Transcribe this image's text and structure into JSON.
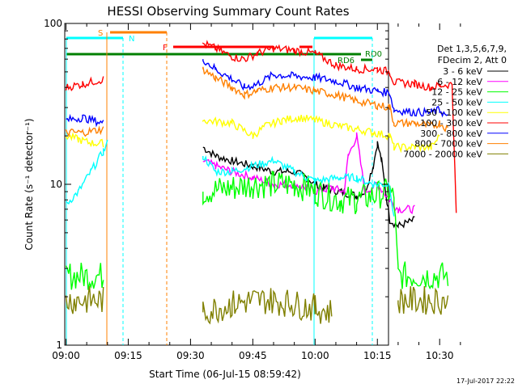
{
  "chart_data": {
    "type": "line",
    "title": "HESSI Observing Summary Count Rates",
    "xlabel": "Start Time (06-Jul-15 08:59:42)",
    "ylabel": "Count Rate (s⁻¹ detector⁻¹)",
    "yscale": "log",
    "ylim": [
      1,
      100
    ],
    "y_ticks": [
      {
        "value": 1,
        "label": "1"
      },
      {
        "value": 10,
        "label": "10"
      },
      {
        "value": 100,
        "label": "100"
      }
    ],
    "x_ticks": [
      {
        "min": 0,
        "label": "09:00"
      },
      {
        "min": 15,
        "label": "09:15"
      },
      {
        "min": 30,
        "label": "09:30"
      },
      {
        "min": 45,
        "label": "09:45"
      },
      {
        "min": 60,
        "label": "10:00"
      },
      {
        "min": 75,
        "label": "10:15"
      },
      {
        "min": 90,
        "label": "10:30"
      }
    ],
    "x_unit": "minutes after 09:00",
    "xlim": [
      0,
      100
    ],
    "legend_header": [
      "Det 1,3,5,6,7,9,",
      "FDecim 2, Att 0"
    ],
    "legend_placement": "right",
    "series": [
      {
        "name": "3 - 6 keV",
        "color": "#000000",
        "points": [
          [
            33,
            17
          ],
          [
            36,
            15
          ],
          [
            40,
            14
          ],
          [
            45,
            13
          ],
          [
            50,
            12
          ],
          [
            55,
            12
          ],
          [
            58,
            11
          ],
          [
            60,
            10
          ],
          [
            62,
            9.5
          ],
          [
            66,
            9
          ],
          [
            70,
            8.5
          ],
          [
            72,
            9
          ],
          [
            74,
            13
          ],
          [
            75,
            18
          ],
          [
            76,
            14
          ],
          [
            77,
            9
          ],
          [
            78,
            6
          ],
          [
            80,
            5.5
          ],
          [
            84,
            6
          ]
        ]
      },
      {
        "name": "6 - 12 keV",
        "color": "#ff00ff",
        "points": [
          [
            33,
            14
          ],
          [
            36,
            13
          ],
          [
            40,
            12
          ],
          [
            45,
            11
          ],
          [
            50,
            10
          ],
          [
            55,
            10
          ],
          [
            58,
            9.5
          ],
          [
            60,
            9
          ],
          [
            64,
            9.5
          ],
          [
            67,
            9
          ],
          [
            68,
            15
          ],
          [
            70,
            20
          ],
          [
            72,
            9
          ],
          [
            75,
            10
          ],
          [
            78,
            8
          ],
          [
            80,
            7
          ],
          [
            84,
            7
          ]
        ]
      },
      {
        "name": "12 - 25 keV",
        "color": "#00ff00",
        "points": [
          [
            0,
            2.7
          ],
          [
            9,
            2.7
          ],
          [
            33,
            9
          ],
          [
            40,
            9.5
          ],
          [
            45,
            10
          ],
          [
            50,
            10
          ],
          [
            55,
            10
          ],
          [
            58,
            9.5
          ],
          [
            60,
            9
          ],
          [
            66,
            8
          ],
          [
            70,
            8
          ],
          [
            74,
            8.5
          ],
          [
            78,
            9
          ],
          [
            79,
            8
          ],
          [
            80,
            2.7
          ],
          [
            92,
            2.7
          ]
        ]
      },
      {
        "name": "25 - 50 keV",
        "color": "#00ffff",
        "points": [
          [
            0,
            7.5
          ],
          [
            3,
            9
          ],
          [
            6,
            12
          ],
          [
            9,
            16
          ],
          [
            10,
            18
          ],
          [
            33,
            15
          ],
          [
            36,
            12
          ],
          [
            40,
            12
          ],
          [
            45,
            13
          ],
          [
            50,
            14
          ],
          [
            55,
            12
          ],
          [
            58,
            11
          ],
          [
            60,
            10.5
          ],
          [
            66,
            11
          ],
          [
            70,
            11
          ],
          [
            74,
            10
          ],
          [
            78,
            10
          ],
          [
            79,
            6
          ]
        ]
      },
      {
        "name": "50 - 100 keV",
        "color": "#ffff00",
        "points": [
          [
            0,
            20
          ],
          [
            3,
            19
          ],
          [
            6,
            18
          ],
          [
            9,
            18
          ],
          [
            33,
            25
          ],
          [
            40,
            24
          ],
          [
            45,
            20
          ],
          [
            48,
            23
          ],
          [
            52,
            25
          ],
          [
            56,
            26
          ],
          [
            60,
            25
          ],
          [
            66,
            23
          ],
          [
            70,
            22
          ],
          [
            74,
            21
          ],
          [
            78,
            20
          ],
          [
            79,
            17
          ],
          [
            84,
            17
          ],
          [
            88,
            17
          ],
          [
            90,
            20
          ]
        ]
      },
      {
        "name": "100 - 300 keV",
        "color": "#ff0000",
        "points": [
          [
            0,
            40
          ],
          [
            4,
            42
          ],
          [
            9,
            45
          ],
          [
            33,
            75
          ],
          [
            36,
            70
          ],
          [
            40,
            62
          ],
          [
            43,
            60
          ],
          [
            46,
            65
          ],
          [
            50,
            70
          ],
          [
            55,
            68
          ],
          [
            60,
            65
          ],
          [
            65,
            55
          ],
          [
            70,
            52
          ],
          [
            75,
            52
          ],
          [
            78,
            50
          ],
          [
            79,
            43
          ],
          [
            84,
            42
          ],
          [
            88,
            40
          ],
          [
            90,
            41
          ],
          [
            93,
            42
          ],
          [
            94,
            6.5
          ]
        ]
      },
      {
        "name": "300 - 800 keV",
        "color": "#0000ff",
        "points": [
          [
            0,
            25
          ],
          [
            4,
            26
          ],
          [
            9,
            24
          ],
          [
            33,
            60
          ],
          [
            36,
            52
          ],
          [
            40,
            45
          ],
          [
            43,
            40
          ],
          [
            46,
            42
          ],
          [
            50,
            48
          ],
          [
            55,
            47
          ],
          [
            60,
            46
          ],
          [
            65,
            44
          ],
          [
            70,
            40
          ],
          [
            75,
            38
          ],
          [
            78,
            37
          ],
          [
            79,
            29
          ],
          [
            84,
            28
          ],
          [
            88,
            28
          ],
          [
            90,
            29
          ],
          [
            92,
            26
          ]
        ]
      },
      {
        "name": "800 - 7000 keV",
        "color": "#ff8000",
        "points": [
          [
            0,
            21
          ],
          [
            4,
            21
          ],
          [
            9,
            22
          ],
          [
            33,
            52
          ],
          [
            36,
            46
          ],
          [
            40,
            40
          ],
          [
            43,
            36
          ],
          [
            46,
            38
          ],
          [
            50,
            40
          ],
          [
            55,
            40
          ],
          [
            60,
            38
          ],
          [
            65,
            36
          ],
          [
            70,
            33
          ],
          [
            75,
            31
          ],
          [
            78,
            30
          ],
          [
            79,
            24
          ],
          [
            84,
            24
          ],
          [
            88,
            23
          ],
          [
            90,
            24
          ],
          [
            92,
            22
          ]
        ]
      },
      {
        "name": "7000 - 20000 keV",
        "color": "#808000",
        "points": [
          [
            0,
            1.9
          ],
          [
            9,
            1.9
          ],
          [
            33,
            1.6
          ],
          [
            40,
            1.8
          ],
          [
            45,
            1.9
          ],
          [
            50,
            1.9
          ],
          [
            55,
            1.8
          ],
          [
            60,
            1.7
          ],
          [
            64,
            1.6
          ],
          [
            80,
            1.9
          ],
          [
            92,
            1.9
          ]
        ]
      }
    ],
    "markers": [
      {
        "label": "S",
        "color": "#ff8000"
      },
      {
        "label": "N",
        "color": "#00ffff"
      },
      {
        "label": "F",
        "color": "#ff0000"
      },
      {
        "label": "RD0",
        "color": "#008000"
      },
      {
        "label": "RD6",
        "color": "#008000"
      }
    ],
    "footer_date": "17-Jul-2017 22:22"
  }
}
